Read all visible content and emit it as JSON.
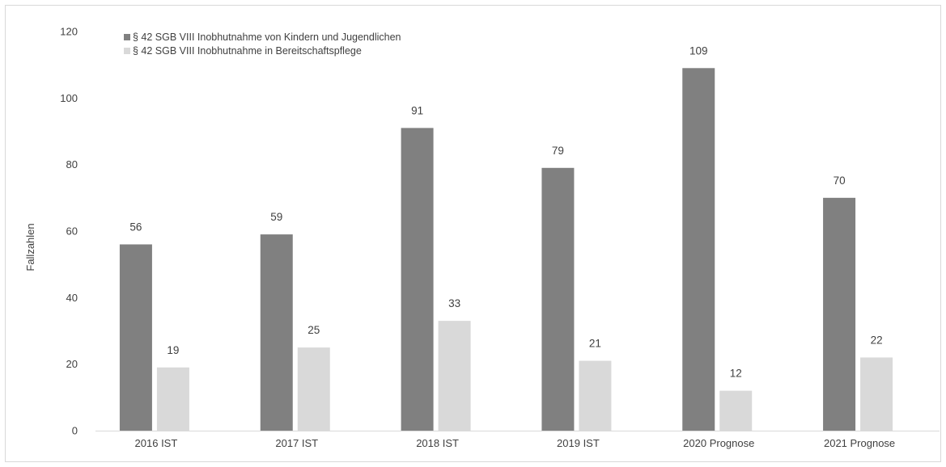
{
  "chart_data": {
    "type": "bar",
    "title": "",
    "xlabel": "",
    "ylabel": "Fallzahlen",
    "ylim": [
      0,
      120
    ],
    "yticks": [
      0,
      20,
      40,
      60,
      80,
      100,
      120
    ],
    "grid": false,
    "legend_position": "top-left",
    "categories": [
      "2016 IST",
      "2017 IST",
      "2018 IST",
      "2019 IST",
      "2020 Prognose",
      "2021 Prognose"
    ],
    "series": [
      {
        "name": "§ 42 SGB VIII Inobhutnahme von Kindern und Jugendlichen",
        "color": "#808080",
        "values": [
          56,
          59,
          91,
          79,
          109,
          70
        ]
      },
      {
        "name": "§ 42 SGB VIII Inobhutnahme  in Bereitschaftspflege",
        "color": "#d9d9d9",
        "values": [
          19,
          25,
          33,
          21,
          12,
          22
        ]
      }
    ]
  }
}
